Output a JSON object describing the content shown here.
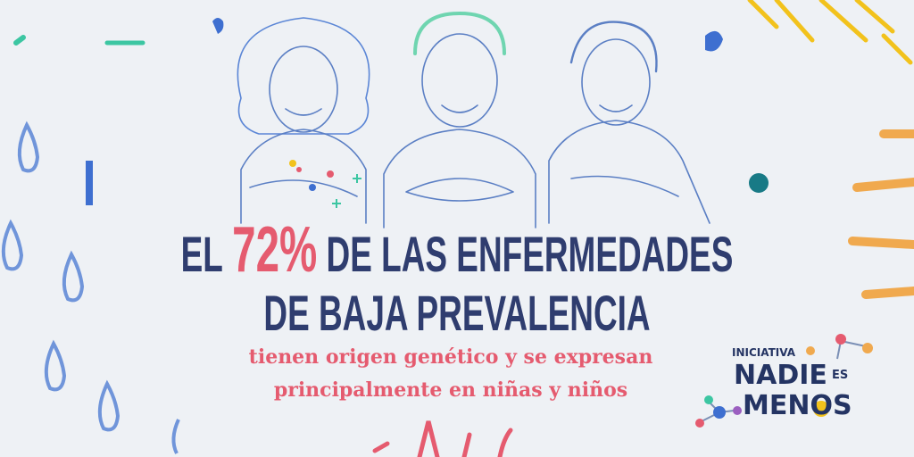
{
  "headline": {
    "line1": {
      "lead": "EL",
      "figure": "72%",
      "rest": "DE LAS ENFERMEDADES"
    },
    "line2": "DE BAJA PREVALENCIA"
  },
  "subtitle": {
    "line1": "tienen origen genético y se expresan",
    "line2": "principalmente en niñas y niños"
  },
  "logo": {
    "kicker": "INICIATIVA",
    "word1": "NADIE",
    "word2": "ES",
    "word3": "MENOS"
  }
}
